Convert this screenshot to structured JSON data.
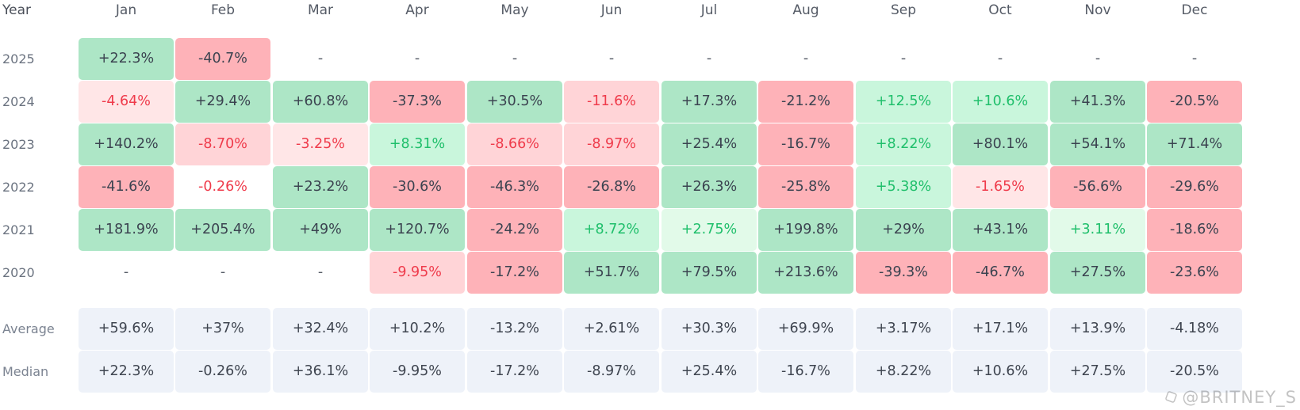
{
  "header": {
    "year_label": "Year",
    "months": [
      "Jan",
      "Feb",
      "Mar",
      "Apr",
      "May",
      "Jun",
      "Jul",
      "Aug",
      "Sep",
      "Oct",
      "Nov",
      "Dec"
    ]
  },
  "rows": [
    {
      "label": "2025",
      "cells": [
        {
          "v": "+22.3%",
          "s": "pos-strong"
        },
        {
          "v": "-40.7%",
          "s": "neg-strong"
        },
        {
          "v": "-",
          "s": "empty"
        },
        {
          "v": "-",
          "s": "empty"
        },
        {
          "v": "-",
          "s": "empty"
        },
        {
          "v": "-",
          "s": "empty"
        },
        {
          "v": "-",
          "s": "empty"
        },
        {
          "v": "-",
          "s": "empty"
        },
        {
          "v": "-",
          "s": "empty"
        },
        {
          "v": "-",
          "s": "empty"
        },
        {
          "v": "-",
          "s": "empty"
        },
        {
          "v": "-",
          "s": "empty"
        }
      ]
    },
    {
      "label": "2024",
      "cells": [
        {
          "v": "-4.64%",
          "s": "neg-light"
        },
        {
          "v": "+29.4%",
          "s": "pos-strong"
        },
        {
          "v": "+60.8%",
          "s": "pos-strong"
        },
        {
          "v": "-37.3%",
          "s": "neg-strong"
        },
        {
          "v": "+30.5%",
          "s": "pos-strong"
        },
        {
          "v": "-11.6%",
          "s": "neg-mid"
        },
        {
          "v": "+17.3%",
          "s": "pos-strong"
        },
        {
          "v": "-21.2%",
          "s": "neg-strong"
        },
        {
          "v": "+12.5%",
          "s": "pos-mid"
        },
        {
          "v": "+10.6%",
          "s": "pos-mid"
        },
        {
          "v": "+41.3%",
          "s": "pos-strong"
        },
        {
          "v": "-20.5%",
          "s": "neg-strong"
        }
      ]
    },
    {
      "label": "2023",
      "cells": [
        {
          "v": "+140.2%",
          "s": "pos-strong"
        },
        {
          "v": "-8.70%",
          "s": "neg-mid"
        },
        {
          "v": "-3.25%",
          "s": "neg-light"
        },
        {
          "v": "+8.31%",
          "s": "pos-mid"
        },
        {
          "v": "-8.66%",
          "s": "neg-mid"
        },
        {
          "v": "-8.97%",
          "s": "neg-mid"
        },
        {
          "v": "+25.4%",
          "s": "pos-strong"
        },
        {
          "v": "-16.7%",
          "s": "neg-strong"
        },
        {
          "v": "+8.22%",
          "s": "pos-mid"
        },
        {
          "v": "+80.1%",
          "s": "pos-strong"
        },
        {
          "v": "+54.1%",
          "s": "pos-strong"
        },
        {
          "v": "+71.4%",
          "s": "pos-strong"
        }
      ]
    },
    {
      "label": "2022",
      "cells": [
        {
          "v": "-41.6%",
          "s": "neg-strong"
        },
        {
          "v": "-0.26%",
          "s": "neg-white"
        },
        {
          "v": "+23.2%",
          "s": "pos-strong"
        },
        {
          "v": "-30.6%",
          "s": "neg-strong"
        },
        {
          "v": "-46.3%",
          "s": "neg-strong"
        },
        {
          "v": "-26.8%",
          "s": "neg-strong"
        },
        {
          "v": "+26.3%",
          "s": "pos-strong"
        },
        {
          "v": "-25.8%",
          "s": "neg-strong"
        },
        {
          "v": "+5.38%",
          "s": "pos-mid"
        },
        {
          "v": "-1.65%",
          "s": "neg-light"
        },
        {
          "v": "-56.6%",
          "s": "neg-strong"
        },
        {
          "v": "-29.6%",
          "s": "neg-strong"
        }
      ]
    },
    {
      "label": "2021",
      "cells": [
        {
          "v": "+181.9%",
          "s": "pos-strong"
        },
        {
          "v": "+205.4%",
          "s": "pos-strong"
        },
        {
          "v": "+49%",
          "s": "pos-strong"
        },
        {
          "v": "+120.7%",
          "s": "pos-strong"
        },
        {
          "v": "-24.2%",
          "s": "neg-strong"
        },
        {
          "v": "+8.72%",
          "s": "pos-mid"
        },
        {
          "v": "+2.75%",
          "s": "pos-light"
        },
        {
          "v": "+199.8%",
          "s": "pos-strong"
        },
        {
          "v": "+29%",
          "s": "pos-strong"
        },
        {
          "v": "+43.1%",
          "s": "pos-strong"
        },
        {
          "v": "+3.11%",
          "s": "pos-light"
        },
        {
          "v": "-18.6%",
          "s": "neg-strong"
        }
      ]
    },
    {
      "label": "2020",
      "cells": [
        {
          "v": "-",
          "s": "empty"
        },
        {
          "v": "-",
          "s": "empty"
        },
        {
          "v": "-",
          "s": "empty"
        },
        {
          "v": "-9.95%",
          "s": "neg-mid"
        },
        {
          "v": "-17.2%",
          "s": "neg-strong"
        },
        {
          "v": "+51.7%",
          "s": "pos-strong"
        },
        {
          "v": "+79.5%",
          "s": "pos-strong"
        },
        {
          "v": "+213.6%",
          "s": "pos-strong"
        },
        {
          "v": "-39.3%",
          "s": "neg-strong"
        },
        {
          "v": "-46.7%",
          "s": "neg-strong"
        },
        {
          "v": "+27.5%",
          "s": "pos-strong"
        },
        {
          "v": "-23.6%",
          "s": "neg-strong"
        }
      ]
    }
  ],
  "stats": [
    {
      "label": "Average",
      "values": [
        "+59.6%",
        "+37%",
        "+32.4%",
        "+10.2%",
        "-13.2%",
        "+2.61%",
        "+30.3%",
        "+69.9%",
        "+3.17%",
        "+17.1%",
        "+13.9%",
        "-4.18%"
      ]
    },
    {
      "label": "Median",
      "values": [
        "+22.3%",
        "-0.26%",
        "+36.1%",
        "-9.95%",
        "-17.2%",
        "-8.97%",
        "+25.4%",
        "-16.7%",
        "+8.22%",
        "+10.6%",
        "+27.5%",
        "-20.5%"
      ]
    }
  ],
  "watermark": {
    "text": "@BRITNEY_S",
    "icon": "square-logo-icon"
  },
  "colors": {
    "positive_strong": "#ade6c6",
    "negative_strong": "#feb2b8",
    "positive_mid": "#c9f6dc",
    "negative_mid": "#ffd4d7",
    "positive_text": "#1fbf6b",
    "negative_text": "#ef3b4b",
    "stat_bg": "#eef2f9"
  }
}
